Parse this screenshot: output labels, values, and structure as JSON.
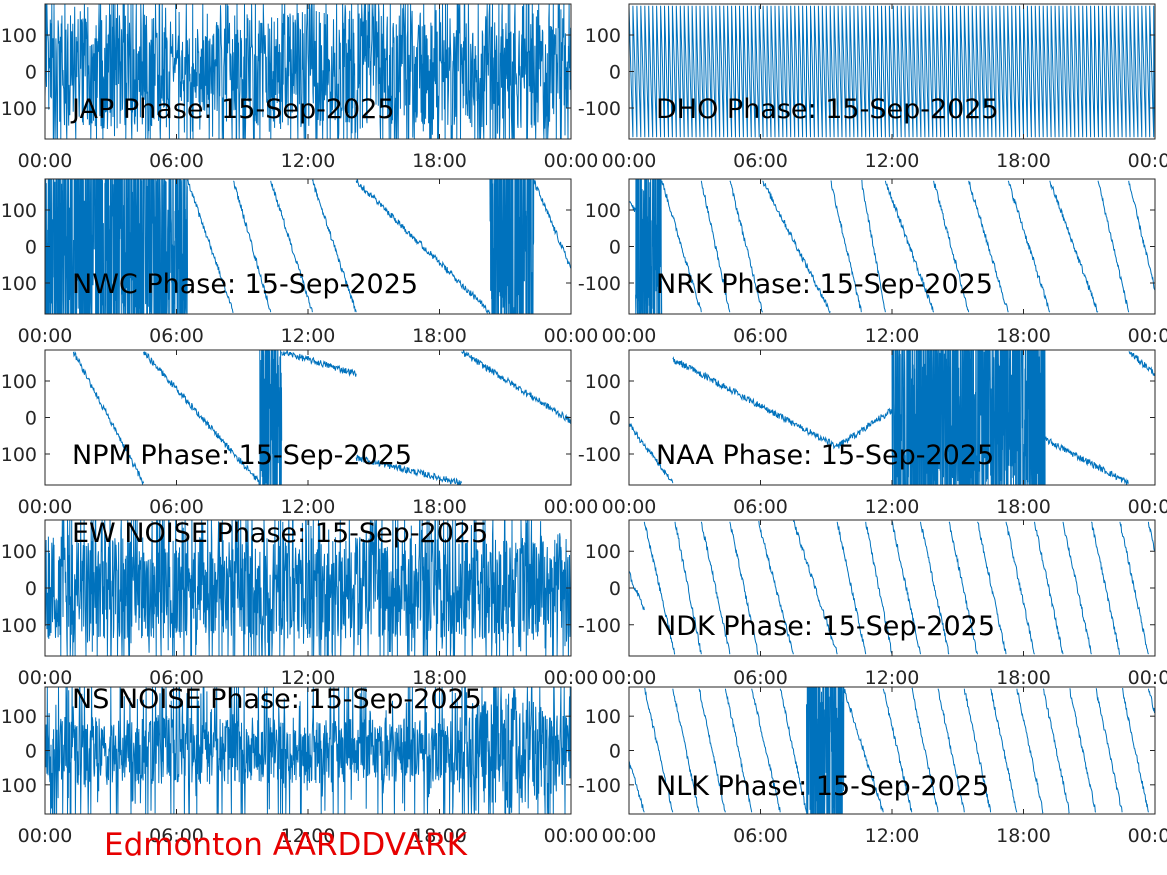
{
  "footer_title": "Edmonton AARDDVARK",
  "footer_color": "#e60000",
  "line_color": "#0072bd",
  "chart_data": [
    {
      "type": "line",
      "title": "JAP Phase: 15-Sep-2025",
      "pattern": "noisy",
      "xlim": [
        0,
        24
      ],
      "ylim": [
        -185,
        185
      ],
      "x_ticks": [
        "00:00",
        "06:00",
        "12:00",
        "18:00",
        "00:00"
      ],
      "y_ticks": [
        "100",
        "0",
        "-100"
      ],
      "noise_density": [
        [
          0,
          0.85
        ],
        [
          2,
          0.8
        ],
        [
          4.5,
          1.0
        ],
        [
          6.2,
          0.45
        ],
        [
          9,
          0.8
        ],
        [
          13,
          0.95
        ],
        [
          18,
          0.8
        ],
        [
          24,
          0.9
        ]
      ]
    },
    {
      "type": "line",
      "title": "DHO Phase: 15-Sep-2025",
      "pattern": "fast-wrap",
      "xlim": [
        0,
        24
      ],
      "ylim": [
        -185,
        185
      ],
      "x_ticks": [
        "00:00",
        "06:00",
        "12:00",
        "18:00",
        "00:00"
      ],
      "y_ticks": [
        "100",
        "0",
        "-100"
      ],
      "wrap_period_hours": 0.18
    },
    {
      "type": "line",
      "title": "NWC Phase: 15-Sep-2025",
      "pattern": "sequence",
      "xlim": [
        0,
        24
      ],
      "ylim": [
        -185,
        185
      ],
      "x_ticks": [
        "00:00",
        "06:00",
        "12:00",
        "18:00",
        "00:00"
      ],
      "y_ticks": [
        "100",
        "0",
        "-100"
      ],
      "segments": [
        {
          "kind": "noise",
          "x": [
            0,
            6.5
          ]
        },
        {
          "kind": "ramp",
          "x": [
            6.5,
            8.6
          ],
          "y": [
            180,
            -180
          ]
        },
        {
          "kind": "ramp",
          "x": [
            8.6,
            10.3
          ],
          "y": [
            180,
            -180
          ]
        },
        {
          "kind": "ramp",
          "x": [
            10.3,
            12.2
          ],
          "y": [
            180,
            -180
          ]
        },
        {
          "kind": "ramp",
          "x": [
            12.2,
            14.2
          ],
          "y": [
            180,
            -180
          ]
        },
        {
          "kind": "ramp",
          "x": [
            14.2,
            20.3
          ],
          "y": [
            180,
            -180
          ]
        },
        {
          "kind": "noise",
          "x": [
            20.3,
            22.3
          ]
        },
        {
          "kind": "ramp",
          "x": [
            22.3,
            24
          ],
          "y": [
            180,
            -60
          ]
        }
      ]
    },
    {
      "type": "line",
      "title": "NRK Phase: 15-Sep-2025",
      "pattern": "sequence",
      "xlim": [
        0,
        24
      ],
      "ylim": [
        -185,
        185
      ],
      "x_ticks": [
        "00:00",
        "06:00",
        "12:00",
        "18:00",
        "00:00"
      ],
      "y_ticks": [
        "100",
        "0",
        "-100"
      ],
      "segments": [
        {
          "kind": "ramp",
          "x": [
            0,
            0.3
          ],
          "y": [
            120,
            100
          ]
        },
        {
          "kind": "noise",
          "x": [
            0.3,
            1.5
          ]
        },
        {
          "kind": "ramp",
          "x": [
            1.5,
            3.3
          ],
          "y": [
            180,
            -180
          ]
        },
        {
          "kind": "ramp",
          "x": [
            3.3,
            4.6
          ],
          "y": [
            180,
            -180
          ]
        },
        {
          "kind": "ramp",
          "x": [
            4.6,
            6.1
          ],
          "y": [
            180,
            -180
          ]
        },
        {
          "kind": "ramp",
          "x": [
            6.1,
            9.2
          ],
          "y": [
            180,
            -180
          ]
        },
        {
          "kind": "ramp",
          "x": [
            9.2,
            10.6
          ],
          "y": [
            180,
            -180
          ]
        },
        {
          "kind": "ramp",
          "x": [
            10.6,
            11.7
          ],
          "y": [
            180,
            -180
          ]
        },
        {
          "kind": "ramp",
          "x": [
            11.7,
            13.9
          ],
          "y": [
            180,
            -180
          ]
        },
        {
          "kind": "ramp",
          "x": [
            13.9,
            15.5
          ],
          "y": [
            180,
            -180
          ]
        },
        {
          "kind": "ramp",
          "x": [
            15.5,
            17.3
          ],
          "y": [
            180,
            -180
          ]
        },
        {
          "kind": "ramp",
          "x": [
            17.3,
            19.2
          ],
          "y": [
            180,
            -180
          ]
        },
        {
          "kind": "ramp",
          "x": [
            19.2,
            21.4
          ],
          "y": [
            180,
            -180
          ]
        },
        {
          "kind": "ramp",
          "x": [
            21.4,
            22.8
          ],
          "y": [
            180,
            -180
          ]
        },
        {
          "kind": "ramp",
          "x": [
            22.8,
            24
          ],
          "y": [
            180,
            -120
          ]
        }
      ]
    },
    {
      "type": "line",
      "title": "NPM Phase: 15-Sep-2025",
      "pattern": "sequence",
      "xlim": [
        0,
        24
      ],
      "ylim": [
        -185,
        185
      ],
      "x_ticks": [
        "00:00",
        "06:00",
        "12:00",
        "18:00",
        "00:00"
      ],
      "y_ticks": [
        "100",
        "0",
        "-100"
      ],
      "segments": [
        {
          "kind": "ramp",
          "x": [
            1.3,
            4.5
          ],
          "y": [
            180,
            -180
          ]
        },
        {
          "kind": "ramp",
          "x": [
            4.5,
            9.8
          ],
          "y": [
            180,
            -180
          ]
        },
        {
          "kind": "noise",
          "x": [
            9.8,
            10.8
          ]
        },
        {
          "kind": "ramp",
          "x": [
            10.8,
            14.2
          ],
          "y": [
            180,
            120
          ]
        },
        {
          "kind": "ramp",
          "x": [
            14.2,
            19
          ],
          "y": [
            -110,
            -180
          ]
        },
        {
          "kind": "ramp",
          "x": [
            19,
            24
          ],
          "y": [
            180,
            -10
          ]
        }
      ]
    },
    {
      "type": "line",
      "title": "NAA Phase: 15-Sep-2025",
      "pattern": "sequence",
      "xlim": [
        0,
        24
      ],
      "ylim": [
        -185,
        185
      ],
      "x_ticks": [
        "00:00",
        "06:00",
        "12:00",
        "18:00",
        "00:00"
      ],
      "y_ticks": [
        "100",
        "0",
        "-100"
      ],
      "segments": [
        {
          "kind": "ramp",
          "x": [
            0,
            2
          ],
          "y": [
            -20,
            -180
          ]
        },
        {
          "kind": "ramp",
          "x": [
            2,
            9.5
          ],
          "y": [
            160,
            -80
          ]
        },
        {
          "kind": "ramp",
          "x": [
            9.5,
            12
          ],
          "y": [
            -80,
            20
          ]
        },
        {
          "kind": "noise",
          "x": [
            12,
            19
          ]
        },
        {
          "kind": "ramp",
          "x": [
            19,
            22.8
          ],
          "y": [
            -60,
            -180
          ]
        },
        {
          "kind": "ramp",
          "x": [
            22.8,
            24
          ],
          "y": [
            180,
            120
          ]
        }
      ]
    },
    {
      "type": "line",
      "title": "EW NOISE Phase: 15-Sep-2025",
      "pattern": "noisy",
      "xlim": [
        0,
        24
      ],
      "ylim": [
        -185,
        185
      ],
      "x_ticks": [
        "00:00",
        "06:00",
        "12:00",
        "18:00",
        "00:00"
      ],
      "y_ticks": [
        "100",
        "0",
        "-100"
      ],
      "noise_density": [
        [
          0,
          0.75
        ],
        [
          24,
          0.75
        ]
      ]
    },
    {
      "type": "line",
      "title": "NDK Phase: 15-Sep-2025",
      "pattern": "sequence",
      "xlim": [
        0,
        24
      ],
      "ylim": [
        -185,
        185
      ],
      "x_ticks": [
        "00:00",
        "06:00",
        "12:00",
        "18:00",
        "00:00"
      ],
      "y_ticks": [
        "100",
        "0",
        "-100"
      ],
      "segments": [
        {
          "kind": "ramp",
          "x": [
            0,
            0.7
          ],
          "y": [
            40,
            -60
          ]
        },
        {
          "kind": "ramp",
          "x": [
            0.7,
            2.1
          ],
          "y": [
            180,
            -180
          ]
        },
        {
          "kind": "ramp",
          "x": [
            2.1,
            3.3
          ],
          "y": [
            180,
            -180
          ]
        },
        {
          "kind": "ramp",
          "x": [
            3.3,
            4.6
          ],
          "y": [
            180,
            -180
          ]
        },
        {
          "kind": "ramp",
          "x": [
            4.6,
            5.9
          ],
          "y": [
            180,
            -180
          ]
        },
        {
          "kind": "ramp",
          "x": [
            5.9,
            7.5
          ],
          "y": [
            180,
            -180
          ]
        },
        {
          "kind": "ramp",
          "x": [
            7.5,
            9.5
          ],
          "y": [
            180,
            -180
          ]
        },
        {
          "kind": "ramp",
          "x": [
            9.5,
            10.8
          ],
          "y": [
            180,
            -180
          ]
        },
        {
          "kind": "ramp",
          "x": [
            10.8,
            12
          ],
          "y": [
            180,
            -180
          ]
        },
        {
          "kind": "ramp",
          "x": [
            12,
            13.3
          ],
          "y": [
            180,
            -180
          ]
        },
        {
          "kind": "ramp",
          "x": [
            13.3,
            14.6
          ],
          "y": [
            180,
            -180
          ]
        },
        {
          "kind": "ramp",
          "x": [
            14.6,
            15.9
          ],
          "y": [
            180,
            -180
          ]
        },
        {
          "kind": "ramp",
          "x": [
            15.9,
            17.2
          ],
          "y": [
            180,
            -180
          ]
        },
        {
          "kind": "ramp",
          "x": [
            17.2,
            18.5
          ],
          "y": [
            180,
            -180
          ]
        },
        {
          "kind": "ramp",
          "x": [
            18.5,
            19.8
          ],
          "y": [
            180,
            -180
          ]
        },
        {
          "kind": "ramp",
          "x": [
            19.8,
            21.1
          ],
          "y": [
            180,
            -180
          ]
        },
        {
          "kind": "ramp",
          "x": [
            21.1,
            22.4
          ],
          "y": [
            180,
            -180
          ]
        },
        {
          "kind": "ramp",
          "x": [
            22.4,
            23.7
          ],
          "y": [
            180,
            -180
          ]
        },
        {
          "kind": "ramp",
          "x": [
            23.7,
            24
          ],
          "y": [
            180,
            100
          ]
        }
      ]
    },
    {
      "type": "line",
      "title": "NS NOISE Phase: 15-Sep-2025",
      "pattern": "noisy",
      "xlim": [
        0,
        24
      ],
      "ylim": [
        -185,
        185
      ],
      "x_ticks": [
        "00:00",
        "06:00",
        "12:00",
        "18:00",
        "00:00"
      ],
      "y_ticks": [
        "100",
        "0",
        "-100"
      ],
      "noise_density": [
        [
          0,
          0.55
        ],
        [
          18,
          0.5
        ],
        [
          21,
          0.9
        ],
        [
          22,
          0.95
        ],
        [
          24,
          0.5
        ]
      ]
    },
    {
      "type": "line",
      "title": "NLK Phase: 15-Sep-2025",
      "pattern": "sequence",
      "xlim": [
        0,
        24
      ],
      "ylim": [
        -185,
        185
      ],
      "x_ticks": [
        "00:00",
        "06:00",
        "12:00",
        "18:00",
        "00:00"
      ],
      "y_ticks": [
        "100",
        "0",
        "-100"
      ],
      "segments": [
        {
          "kind": "ramp",
          "x": [
            0,
            0.7
          ],
          "y": [
            -30,
            -180
          ]
        },
        {
          "kind": "ramp",
          "x": [
            0.7,
            2
          ],
          "y": [
            180,
            -180
          ]
        },
        {
          "kind": "ramp",
          "x": [
            2,
            3.2
          ],
          "y": [
            180,
            -180
          ]
        },
        {
          "kind": "ramp",
          "x": [
            3.2,
            4.4
          ],
          "y": [
            180,
            -180
          ]
        },
        {
          "kind": "ramp",
          "x": [
            4.4,
            5.6
          ],
          "y": [
            180,
            -180
          ]
        },
        {
          "kind": "ramp",
          "x": [
            5.6,
            6.9
          ],
          "y": [
            180,
            -180
          ]
        },
        {
          "kind": "ramp",
          "x": [
            6.9,
            8.1
          ],
          "y": [
            180,
            -180
          ]
        },
        {
          "kind": "noise",
          "x": [
            8.1,
            9.8
          ]
        },
        {
          "kind": "ramp",
          "x": [
            9.8,
            11.6
          ],
          "y": [
            180,
            -180
          ]
        },
        {
          "kind": "ramp",
          "x": [
            11.6,
            12.9
          ],
          "y": [
            180,
            -180
          ]
        },
        {
          "kind": "ramp",
          "x": [
            12.9,
            14.1
          ],
          "y": [
            180,
            -180
          ]
        },
        {
          "kind": "ramp",
          "x": [
            14.1,
            15.3
          ],
          "y": [
            180,
            -180
          ]
        },
        {
          "kind": "ramp",
          "x": [
            15.3,
            16.5
          ],
          "y": [
            180,
            -180
          ]
        },
        {
          "kind": "ramp",
          "x": [
            16.5,
            17.7
          ],
          "y": [
            180,
            -180
          ]
        },
        {
          "kind": "ramp",
          "x": [
            17.7,
            18.9
          ],
          "y": [
            180,
            -180
          ]
        },
        {
          "kind": "ramp",
          "x": [
            18.9,
            20.1
          ],
          "y": [
            180,
            -180
          ]
        },
        {
          "kind": "ramp",
          "x": [
            20.1,
            21.3
          ],
          "y": [
            180,
            -180
          ]
        },
        {
          "kind": "ramp",
          "x": [
            21.3,
            22.5
          ],
          "y": [
            180,
            -180
          ]
        },
        {
          "kind": "ramp",
          "x": [
            22.5,
            23.7
          ],
          "y": [
            180,
            -180
          ]
        },
        {
          "kind": "ramp",
          "x": [
            23.7,
            24
          ],
          "y": [
            180,
            110
          ]
        }
      ]
    }
  ]
}
